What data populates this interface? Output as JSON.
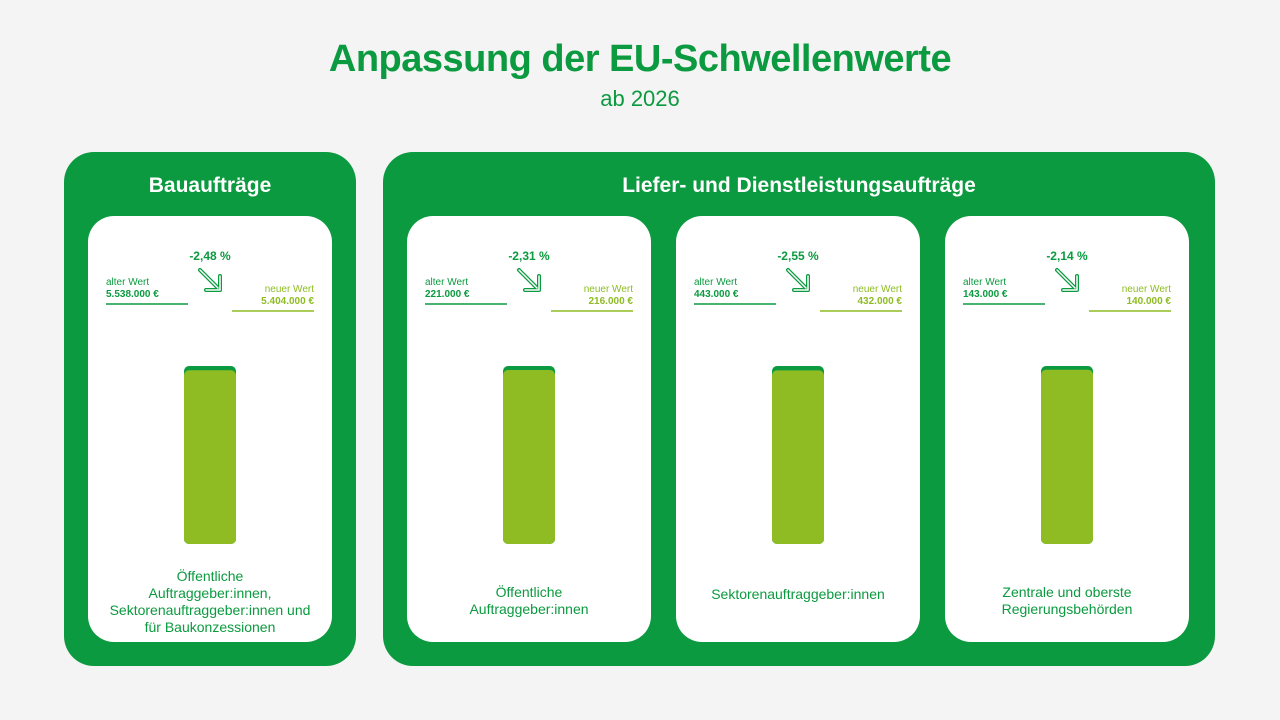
{
  "header": {
    "title": "Anpassung der EU-Schwellenwerte",
    "subtitle": "ab 2026"
  },
  "colors": {
    "brand_green": "#0b9a3f",
    "bar_green": "#8ebc22",
    "background": "#f4f4f4"
  },
  "chart_data": {
    "type": "bar",
    "title": "Anpassung der EU-Schwellenwerte",
    "subtitle": "ab 2026",
    "groups": [
      {
        "name": "Bauaufträge",
        "panels": [
          0
        ]
      },
      {
        "name": "Liefer- und Dienstleistungsaufträge",
        "panels": [
          1,
          2,
          3
        ]
      }
    ],
    "panels": [
      {
        "category_lines": [
          "Öffentliche",
          "Auftraggeber:innen,",
          "Sektorenauftraggeber:innen und",
          "für Baukonzessionen"
        ],
        "old_label": "alter Wert",
        "old_value": 5538000,
        "old_text": "5.538.000 €",
        "new_label": "neuer Wert",
        "new_value": 5404000,
        "new_text": "5.404.000 €",
        "change_text": "-2,48 %",
        "change_percent": -2.48
      },
      {
        "category_lines": [
          "Öffentliche",
          "Auftraggeber:innen"
        ],
        "old_label": "alter Wert",
        "old_value": 221000,
        "old_text": "221.000 €",
        "new_label": "neuer Wert",
        "new_value": 216000,
        "new_text": "216.000 €",
        "change_text": "-2,31 %",
        "change_percent": -2.31
      },
      {
        "category_lines": [
          "Sektorenauftraggeber:innen"
        ],
        "old_label": "alter Wert",
        "old_value": 443000,
        "old_text": "443.000 €",
        "new_label": "neuer Wert",
        "new_value": 432000,
        "new_text": "432.000 €",
        "change_text": "-2,55 %",
        "change_percent": -2.55
      },
      {
        "category_lines": [
          "Zentrale und oberste",
          "Regierungsbehörden"
        ],
        "old_label": "alter Wert",
        "old_value": 143000,
        "old_text": "143.000 €",
        "new_label": "neuer Wert",
        "new_value": 140000,
        "new_text": "140.000 €",
        "change_text": "-2,14 %",
        "change_percent": -2.14
      }
    ]
  }
}
